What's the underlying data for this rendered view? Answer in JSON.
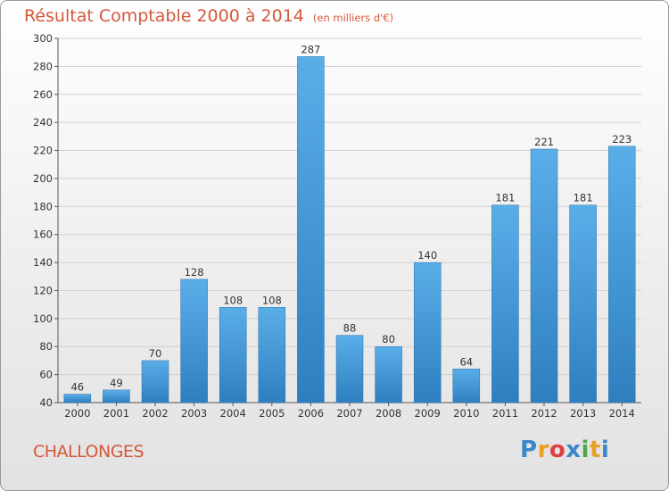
{
  "header": {
    "title": "Résultat Comptable 2000 à 2014",
    "subtitle": "(en milliers d'€)"
  },
  "footer": {
    "commune": "CHALLONGES",
    "logo": {
      "text": "Proxiti",
      "colors": [
        "#3a87c8",
        "#e8a020",
        "#e04040",
        "#3a87c8",
        "#4ba84b",
        "#e8a020",
        "#3a87c8"
      ]
    }
  },
  "colors": {
    "title": "#d4583a",
    "bar_light": "#5aaee8",
    "bar_dark": "#2f7fc0",
    "grid": "#cfcfcf",
    "axis_text": "#333333"
  },
  "chart_data": {
    "type": "bar",
    "title": "Résultat Comptable 2000 à 2014",
    "ylabel": "en milliers d'€",
    "categories": [
      "2000",
      "2001",
      "2002",
      "2003",
      "2004",
      "2005",
      "2006",
      "2007",
      "2008",
      "2009",
      "2010",
      "2011",
      "2012",
      "2013",
      "2014"
    ],
    "values": [
      46,
      49,
      70,
      128,
      108,
      108,
      287,
      88,
      80,
      140,
      64,
      181,
      221,
      181,
      223
    ],
    "ylim": [
      40,
      300
    ],
    "yticks": [
      40,
      60,
      80,
      100,
      120,
      140,
      160,
      180,
      200,
      220,
      240,
      260,
      280,
      300
    ],
    "grid": true
  }
}
